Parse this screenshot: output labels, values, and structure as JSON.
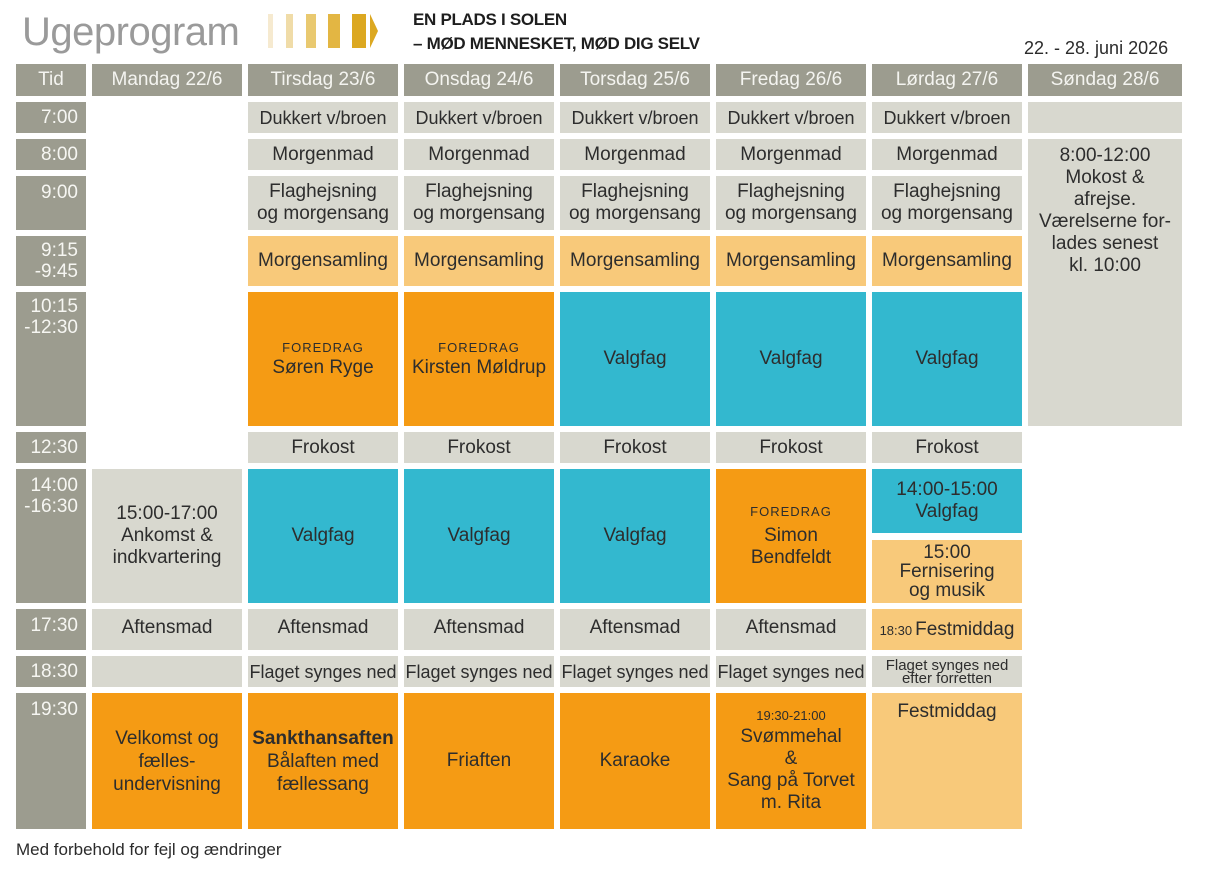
{
  "header": {
    "title": "Ugeprogram",
    "slogan_line1": "EN PLADS I SOLEN",
    "slogan_line2": "– MØD MENNESKET, MØD DIG SELV",
    "date_range": "22. - 28. juni 2026"
  },
  "logo": {
    "icon": "arrow-stripes-icon",
    "colors": [
      "#f6ead0",
      "#f0dca8",
      "#e9c970",
      "#e3b643",
      "#dca821",
      "#dca821"
    ]
  },
  "colors": {
    "header_bg": "#9c9c8f",
    "gray": "#d8d8cf",
    "peach": "#f8c97a",
    "orange": "#f59b14",
    "teal": "#33b8cf"
  },
  "columns": {
    "tid": "Tid",
    "days": [
      "Mandag 22/6",
      "Tirsdag 23/6",
      "Onsdag 24/6",
      "Torsdag 25/6",
      "Fredag 26/6",
      "Lørdag 27/6",
      "Søndag 28/6"
    ]
  },
  "times": {
    "t0700": "7:00",
    "t0800": "8:00",
    "t0900": "9:00",
    "t0915a": "9:15",
    "t0915b": "-9:45",
    "t1015a": "10:15",
    "t1015b": "-12:30",
    "t1230": "12:30",
    "t1400a": "14:00",
    "t1400b": "-16:30",
    "t1730": "17:30",
    "t1830": "18:30",
    "t1930": "19:30"
  },
  "events": {
    "dukkert": "Dukkert v/broen",
    "morgenmad": "Morgenmad",
    "flag1": "Flaghejsning",
    "flag2": "og morgensang",
    "morgensamling": "Morgensamling",
    "foredrag": "FOREDRAG",
    "soren": "Søren Ryge",
    "kirsten": "Kirsten Møldrup",
    "valgfag": "Valgfag",
    "frokost": "Frokost",
    "ankomst1": "15:00-17:00",
    "ankomst2": "Ankomst &",
    "ankomst3": "indkvartering",
    "simon1": "Simon",
    "simon2": "Bendfeldt",
    "sat_valgfag1": "14:00-15:00",
    "sat_valgfag2": "Valgfag",
    "fernis1": "15:00",
    "fernis2": "Fernisering",
    "fernis3": "og musik",
    "aftensmad": "Aftensmad",
    "sat_fest_time": "18:30",
    "sat_fest": "Festmiddag",
    "flaget": "Flaget synges ned",
    "sat_flag1": "Flaget synges ned",
    "sat_flag2": "efter forretten",
    "velkomst1": "Velkomst og",
    "velkomst2": "fælles-",
    "velkomst3": "undervisning",
    "sankt1": "Sankthansaften",
    "sankt2": "Bålaften med",
    "sankt3": "fællessang",
    "friaften": "Friaften",
    "karaoke": "Karaoke",
    "svom_time": "19:30-21:00",
    "svom1": "Svømmehal",
    "svom2": "&",
    "svom3": "Sang på Torvet",
    "svom4": "m. Rita",
    "festmiddag": "Festmiddag",
    "sun1": "8:00-12:00",
    "sun2": "Mokost &",
    "sun3": "afrejse.",
    "sun4": "Værelserne for-",
    "sun5": "lades senest",
    "sun6": "kl. 10:00"
  },
  "footer": {
    "note": "Med forbehold for fejl og ændringer"
  }
}
